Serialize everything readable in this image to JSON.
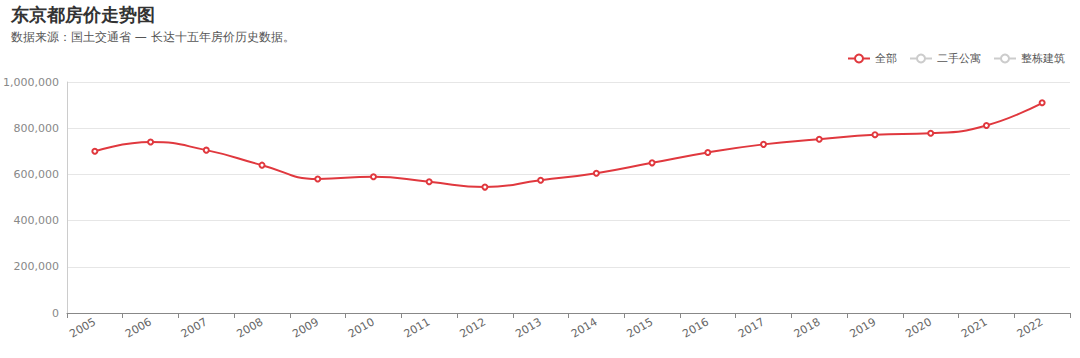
{
  "chart_data": {
    "type": "line",
    "title": "东京都房价走势图",
    "subtitle": "数据来源：国土交通省 — 长达十五年房价历史数据。",
    "categories": [
      "2005",
      "2006",
      "2007",
      "2008",
      "2009",
      "2010",
      "2011",
      "2012",
      "2013",
      "2014",
      "2015",
      "2016",
      "2017",
      "2018",
      "2019",
      "2020",
      "2021",
      "2022"
    ],
    "series": [
      {
        "name": "全部",
        "color": "#e0383e",
        "marker": "emptyCircle",
        "values": [
          700000,
          740000,
          705000,
          640000,
          580000,
          590000,
          568000,
          545000,
          575000,
          605000,
          650000,
          695000,
          730000,
          752000,
          772000,
          778000,
          812000,
          910000
        ]
      },
      {
        "name": "二手公寓",
        "color": "#cccccc",
        "marker": "emptyCircle",
        "values": [
          null,
          null,
          null,
          null,
          null,
          null,
          null,
          null,
          null,
          null,
          null,
          null,
          null,
          null,
          null,
          null,
          null,
          null
        ]
      },
      {
        "name": "整栋建筑",
        "color": "#cccccc",
        "marker": "emptyCircle",
        "values": [
          null,
          null,
          null,
          null,
          null,
          null,
          null,
          null,
          null,
          null,
          null,
          null,
          null,
          null,
          null,
          null,
          null,
          null
        ]
      }
    ],
    "ylim": [
      0,
      1000000
    ],
    "yticks": [
      0,
      {
        "value": 200000,
        "label": "200,000"
      },
      {
        "value": 400000,
        "label": "400,000"
      },
      {
        "value": 600000,
        "label": "600,000"
      },
      {
        "value": 800000,
        "label": "800,000"
      },
      {
        "value": 1000000,
        "label": "1,000,000"
      }
    ],
    "grid": true,
    "legend": "top-right"
  }
}
